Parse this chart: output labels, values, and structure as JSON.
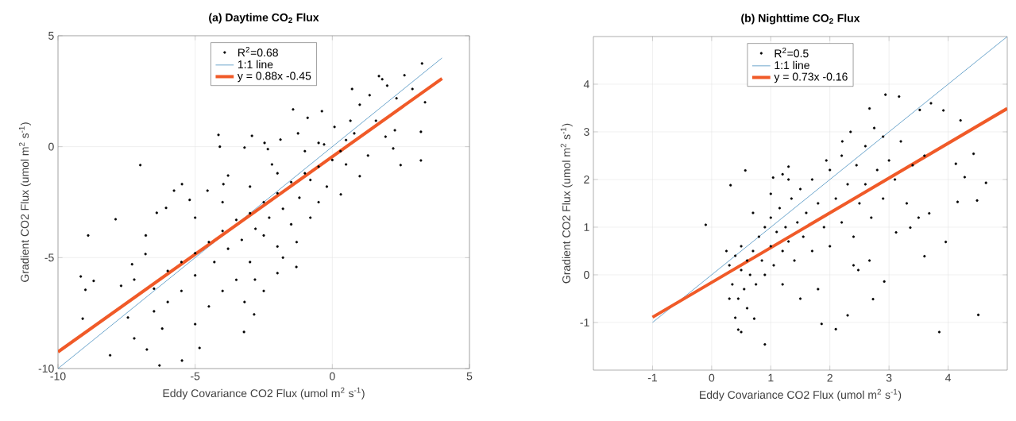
{
  "chart_data": [
    {
      "type": "scatter",
      "title": "(a) Daytime CO$_{2}$ Flux",
      "xlabel": "Eddy Covariance CO2 Flux (umol m$^{2}$ s$^{-1}$)",
      "ylabel": "Gradient CO2 Flux (umol m$^{2}$ s$^{-1}$)",
      "xlim": [
        -10,
        5
      ],
      "ylim": [
        -10,
        5
      ],
      "xticks": [
        -10,
        -5,
        0,
        5
      ],
      "yticks": [
        -10,
        -5,
        0,
        5
      ],
      "grid": true,
      "legend": "top",
      "series": [
        {
          "name": "R$^{2}$=0.68",
          "color": "#000000",
          "x": [
            -8.9,
            -9.17,
            -9.0,
            -8.7,
            -9.1,
            -8.1,
            -7.9,
            -7.0,
            -4.15,
            -4.1,
            -2.93,
            -3.2,
            -1.43,
            -0.38,
            -0.9,
            3.27,
            1.7,
            2.63,
            3.38,
            3.23,
            3.23,
            2.49,
            2.22,
            0.72,
            0.31,
            1.0,
            1.3,
            -1.31,
            -2.0,
            -2.82,
            -3.22,
            -2.85,
            -4.84,
            -5.48,
            -6.3,
            -6.76,
            -7.22,
            -7.45,
            -6.5,
            -7.7,
            -7.22,
            -6.81,
            -6.4,
            -6.06,
            -5.77,
            -5.48,
            -4.55,
            -3.97,
            -2.35,
            -2.47,
            -1.89,
            -1.25,
            -0.5,
            0.08,
            0.66,
            1.0,
            1.36,
            1.82,
            2.0,
            2.34,
            2.92,
            1.59,
            1.94,
            2.28,
            -1,
            -0.5,
            -0.8,
            -1.5,
            -1.2,
            -2,
            -1.8,
            -2.5,
            -2.3,
            -3,
            -2.8,
            -3.5,
            -3.3,
            -4,
            -3.8,
            -4.5,
            -4.3,
            -5,
            -5,
            -5.5,
            -5.5,
            -6,
            -6,
            -6.5,
            -4,
            -3,
            -2,
            -1.5,
            -0.5,
            -1,
            -2,
            -3,
            -4,
            -5,
            -3.5,
            -4.5,
            -5,
            -2.5,
            0,
            0.3,
            0.5,
            0.5,
            0.8,
            -0.3,
            -0.2,
            -2.2,
            -3.8,
            -5.2,
            -6.8,
            -7.3,
            -6.2,
            -3.2,
            -2.5,
            -1.8,
            -0.8,
            -1.3
          ],
          "values": [
            -4.0,
            -5.85,
            -6.45,
            -6.05,
            -7.75,
            -9.4,
            -3.27,
            -0.83,
            0.53,
            0.0,
            0.49,
            -0.04,
            1.68,
            1.6,
            1.3,
            3.75,
            3.18,
            3.22,
            2.0,
            0.67,
            -0.62,
            -0.83,
            -0.08,
            2.6,
            -2.15,
            -1.33,
            -0.4,
            -5.42,
            -5.7,
            -5.99,
            -8.35,
            -7.56,
            -9.07,
            -9.64,
            -9.86,
            -9.14,
            -8.64,
            -7.7,
            -7.42,
            -6.27,
            -5.99,
            -4.84,
            -2.98,
            -2.76,
            -1.98,
            -1.69,
            -1.98,
            -1.69,
            -0.11,
            0.17,
            0.32,
            0.6,
            0.17,
            0.89,
            1.17,
            1.89,
            2.32,
            3.04,
            2.75,
            2.18,
            2.6,
            1.17,
            0.45,
            0.74,
            -1.2,
            -0.9,
            -1.5,
            -1.6,
            -2.3,
            -2.1,
            -2.8,
            -2.5,
            -3.2,
            -3.0,
            -3.7,
            -3.3,
            -4.2,
            -3.8,
            -4.6,
            -4.3,
            -5.2,
            -4.8,
            -5.8,
            -5.2,
            -6.5,
            -5.6,
            -7,
            -6.4,
            -6.5,
            -5.2,
            -4.5,
            -3.5,
            -2.5,
            -0.2,
            -1.2,
            -1.8,
            -2.5,
            -3.2,
            -6,
            -7.2,
            -8,
            -4,
            -0.6,
            -0.2,
            0.3,
            -0.8,
            0.6,
            0.1,
            -1.8,
            -0.8,
            -1.3,
            -2.4,
            -4,
            -5.3,
            -8.2,
            -7,
            -6.5,
            -5,
            -3.2,
            -4.3
          ]
        },
        {
          "name": "1:1 line",
          "type": "line",
          "color": "#4a90c0",
          "x": [
            -10,
            4
          ],
          "values": [
            -10,
            4
          ]
        },
        {
          "name": "y = 0.88x -0.45",
          "type": "line",
          "color": "#f05a28",
          "x": [
            -10,
            4
          ],
          "values": [
            -9.25,
            3.07
          ]
        }
      ]
    },
    {
      "type": "scatter",
      "title": "(b) Nighttime CO$_{2}$ Flux",
      "xlabel": "Eddy Covariance CO2 Flux (umol m$^{2}$ s$^{-1}$)",
      "ylabel": "Gradient CO2 Flux (umol m$^{2}$ s$^{-1}$)",
      "xlim": [
        -2,
        5
      ],
      "ylim": [
        -2,
        5
      ],
      "xticks": [
        -1,
        0,
        1,
        2,
        3,
        4
      ],
      "yticks": [
        -1,
        0,
        1,
        2,
        3,
        4
      ],
      "grid": true,
      "legend": "top",
      "series": [
        {
          "name": "R$^{2}$=0.5",
          "color": "#000000",
          "x": [
            -0.1,
            0.32,
            0.57,
            2.94,
            3.17,
            2.67,
            3.52,
            3.71,
            3.92,
            4.21,
            4.43,
            4.64,
            4.28,
            4.16,
            4.49,
            4.13,
            3.96,
            3.6,
            4.51,
            3.85,
            2.92,
            2.73,
            2.3,
            2.1,
            1.86,
            0.9,
            0.45,
            0.72,
            2.48,
            2.67,
            3.36,
            3.12,
            3.68,
            2.21,
            2.35,
            2.75,
            1.94,
            1.3,
            1.2,
            1.04,
            0.3,
            0.35,
            0.4,
            0.45,
            0.5,
            0.5,
            0.55,
            0.6,
            0.6,
            0.65,
            0.7,
            0.75,
            0.8,
            0.85,
            0.9,
            0.9,
            1.0,
            1.0,
            1.05,
            1.1,
            1.15,
            1.2,
            1.25,
            1.3,
            1.35,
            1.4,
            1.45,
            1.5,
            1.55,
            1.6,
            1.7,
            1.7,
            1.8,
            1.9,
            2.0,
            2.0,
            2.1,
            2.2,
            2.2,
            2.3,
            2.4,
            2.45,
            2.5,
            2.6,
            2.6,
            2.7,
            2.8,
            2.9,
            2.9,
            3.0,
            3.1,
            3.2,
            3.3,
            3.4,
            3.5,
            3.6,
            0.3,
            0.4,
            0.5,
            1.2,
            1.5,
            1.8,
            2.4,
            0.25,
            0.7,
            1.0,
            1.3
          ],
          "values": [
            1.05,
            1.88,
            2.19,
            3.78,
            3.74,
            3.49,
            3.46,
            3.6,
            3.45,
            3.24,
            2.54,
            1.93,
            2.05,
            1.53,
            1.56,
            2.33,
            0.69,
            0.39,
            -0.84,
            -1.2,
            -0.14,
            -0.51,
            -0.85,
            -1.14,
            -1.03,
            -1.46,
            -1.15,
            -0.92,
            0.1,
            0.3,
            0.99,
            0.89,
            1.29,
            2.8,
            3.0,
            3.08,
            2.4,
            2.27,
            2.11,
            2.04,
            0.2,
            -0.2,
            0.4,
            -0.5,
            0.1,
            0.6,
            -0.3,
            0.3,
            -0.7,
            0.0,
            0.5,
            -0.2,
            0.8,
            0.3,
            1.0,
            0.0,
            0.6,
            1.2,
            0.2,
            0.9,
            1.4,
            0.5,
            1.0,
            0.7,
            1.6,
            0.3,
            1.1,
            1.8,
            0.8,
            1.3,
            2.0,
            0.5,
            1.5,
            1.0,
            2.2,
            0.6,
            1.6,
            2.5,
            1.1,
            1.9,
            0.8,
            2.3,
            1.5,
            2.7,
            1.9,
            1.2,
            2.2,
            2.9,
            1.6,
            2.4,
            2.0,
            2.8,
            1.5,
            2.3,
            1.2,
            2.5,
            -0.5,
            -0.9,
            -1.2,
            -0.2,
            -0.5,
            -0.3,
            0.2,
            0.5,
            1.3,
            1.7,
            2.0
          ]
        },
        {
          "name": "1:1 line",
          "type": "line",
          "color": "#4a90c0",
          "x": [
            -1,
            5
          ],
          "values": [
            -1,
            5
          ]
        },
        {
          "name": "y = 0.73x -0.16",
          "type": "line",
          "color": "#f05a28",
          "x": [
            -1,
            5
          ],
          "values": [
            -0.89,
            3.49
          ]
        }
      ]
    }
  ]
}
